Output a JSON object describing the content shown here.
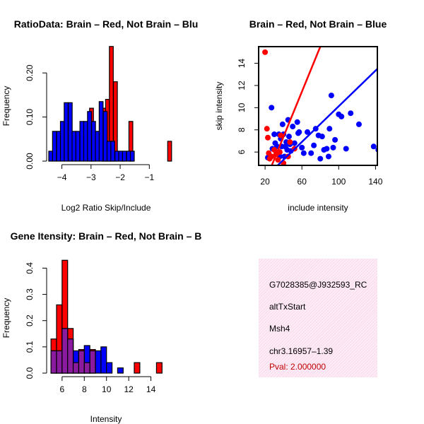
{
  "chart_data": [
    {
      "type": "bar",
      "title": "RatioData: Brain – Red, Not Brain – Blu",
      "xlabel": "Log2 Ratio Skip/Include",
      "ylabel": "Frequency",
      "xlim": [
        -4.45,
        -0.45
      ],
      "ylim": [
        0,
        0.25
      ],
      "xticks": [
        -4,
        -3,
        -2,
        -1
      ],
      "xtick_labels": [
        "−4",
        "−3",
        "−2",
        "−1"
      ],
      "yticks": [
        0.0,
        0.1,
        0.2
      ],
      "ytick_labels": [
        "0.00",
        "0.10",
        "0.20"
      ],
      "bin_width": 0.133,
      "series": [
        {
          "name": "Brain",
          "color": "#ff0000",
          "bin_starts": [
            -3.05,
            -2.63,
            -2.5,
            -2.37,
            -2.23,
            -1.97,
            -1.7,
            -0.37
          ],
          "values": [
            0.12,
            0.12,
            0.14,
            0.26,
            0.18,
            0.02,
            0.09,
            0.045
          ]
        },
        {
          "name": "Not Brain",
          "color": "#0000ff",
          "bin_starts": [
            -4.45,
            -4.32,
            -4.18,
            -4.05,
            -3.92,
            -3.78,
            -3.65,
            -3.52,
            -3.38,
            -3.25,
            -3.12,
            -2.98,
            -2.85,
            -2.72,
            -2.58,
            -2.45,
            -2.32,
            -2.18,
            -2.05,
            -1.92,
            -1.78,
            -1.65
          ],
          "values": [
            0.0225,
            0.0675,
            0.0675,
            0.09,
            0.1325,
            0.1325,
            0.0675,
            0.0675,
            0.09,
            0.09,
            0.1125,
            0.09,
            0.0675,
            0.135,
            0.1125,
            0.045,
            0.045,
            0.0225,
            0.0225,
            0.0225,
            0.0225,
            0.0225
          ]
        }
      ]
    },
    {
      "type": "scatter",
      "title": "Brain – Red, Not Brain – Blue",
      "xlabel": "include intensity",
      "ylabel": "skip intensity",
      "xlim": [
        13,
        142
      ],
      "ylim": [
        4.8,
        15.5
      ],
      "xticks": [
        20,
        60,
        100,
        140
      ],
      "xtick_labels": [
        "20",
        "60",
        "100",
        "140"
      ],
      "yticks": [
        6,
        8,
        10,
        12,
        14
      ],
      "ytick_labels": [
        "6",
        "8",
        "10",
        "12",
        "14"
      ],
      "series": [
        {
          "name": "Brain",
          "color": "#ff0000",
          "x": [
            20,
            22,
            24,
            25,
            27,
            30,
            32,
            34,
            37,
            40,
            45,
            47,
            52,
            23,
            36
          ],
          "y": [
            15,
            8.1,
            5.9,
            5.4,
            5.6,
            6.2,
            5.8,
            5.3,
            7.5,
            5.0,
            5.6,
            6.9,
            6.3,
            7.3,
            6.0
          ],
          "fit": [
            [
              13,
              1.9
            ],
            [
              80,
              15.5
            ]
          ]
        },
        {
          "name": "Not Brain",
          "color": "#0000ff",
          "x": [
            23,
            27,
            28,
            30,
            31,
            33,
            35,
            36,
            37,
            38,
            39,
            40,
            41,
            42,
            43,
            44,
            45,
            46,
            47,
            48,
            50,
            52,
            55,
            57,
            60,
            62,
            66,
            70,
            73,
            75,
            78,
            80,
            82,
            84,
            87,
            89,
            92,
            94,
            96,
            100,
            103,
            108,
            113,
            122,
            138,
            143,
            90,
            56
          ],
          "y": [
            5.5,
            10,
            6.3,
            7.6,
            6.8,
            6.5,
            7.6,
            5.6,
            7.2,
            6.5,
            8.5,
            7.6,
            5.6,
            6.5,
            6.9,
            6.2,
            8.9,
            7.4,
            6.7,
            6.1,
            8.3,
            6.8,
            8.7,
            7.8,
            6.4,
            5.9,
            7.8,
            5.9,
            6.6,
            8.1,
            7.5,
            5.4,
            7.4,
            6.2,
            6.3,
            5.6,
            11.1,
            6.4,
            7.1,
            9.4,
            9.2,
            6.3,
            9.5,
            8.5,
            6.5,
            6.2,
            8.1,
            7.7
          ],
          "fit": [
            [
              20,
              3.7
            ],
            [
              142,
              13.5
            ]
          ]
        }
      ]
    },
    {
      "type": "bar",
      "title": "Gene Itensity: Brain – Red, Not Brain – B",
      "xlabel": "Intensity",
      "ylabel": "Frequency",
      "xlim": [
        4.8,
        15.3
      ],
      "ylim": [
        0,
        0.42
      ],
      "xticks": [
        6,
        8,
        10,
        12,
        14
      ],
      "xtick_labels": [
        "6",
        "8",
        "10",
        "12",
        "14"
      ],
      "yticks": [
        0.0,
        0.1,
        0.2,
        0.3,
        0.4
      ],
      "ytick_labels": [
        "0.0",
        "0.1",
        "0.2",
        "0.3",
        "0.4"
      ],
      "bin_width": 0.5,
      "series": [
        {
          "name": "Brain",
          "color": "#ff0000",
          "bin_starts": [
            5.0,
            5.5,
            6.0,
            6.5,
            7.0,
            7.5,
            8.0,
            8.5,
            12.5,
            14.5
          ],
          "values": [
            0.13,
            0.26,
            0.43,
            0.17,
            0.04,
            0.09,
            0.04,
            0.09,
            0.04,
            0.04
          ]
        },
        {
          "name": "Not Brain",
          "color": "#0000ff",
          "bin_starts": [
            5.0,
            5.5,
            6.0,
            6.5,
            7.0,
            7.5,
            8.0,
            8.5,
            9.0,
            9.5,
            10.0,
            11.0
          ],
          "values": [
            0.085,
            0.085,
            0.17,
            0.13,
            0.085,
            0.085,
            0.105,
            0.085,
            0.085,
            0.1,
            0.04,
            0.02
          ]
        }
      ]
    }
  ],
  "info": {
    "id": "G7028385@J932593_RC",
    "event": "altTxStart",
    "gene": "Msh4",
    "location": "chr3.16957–1.39",
    "pval": "Pval: 2.000000"
  }
}
